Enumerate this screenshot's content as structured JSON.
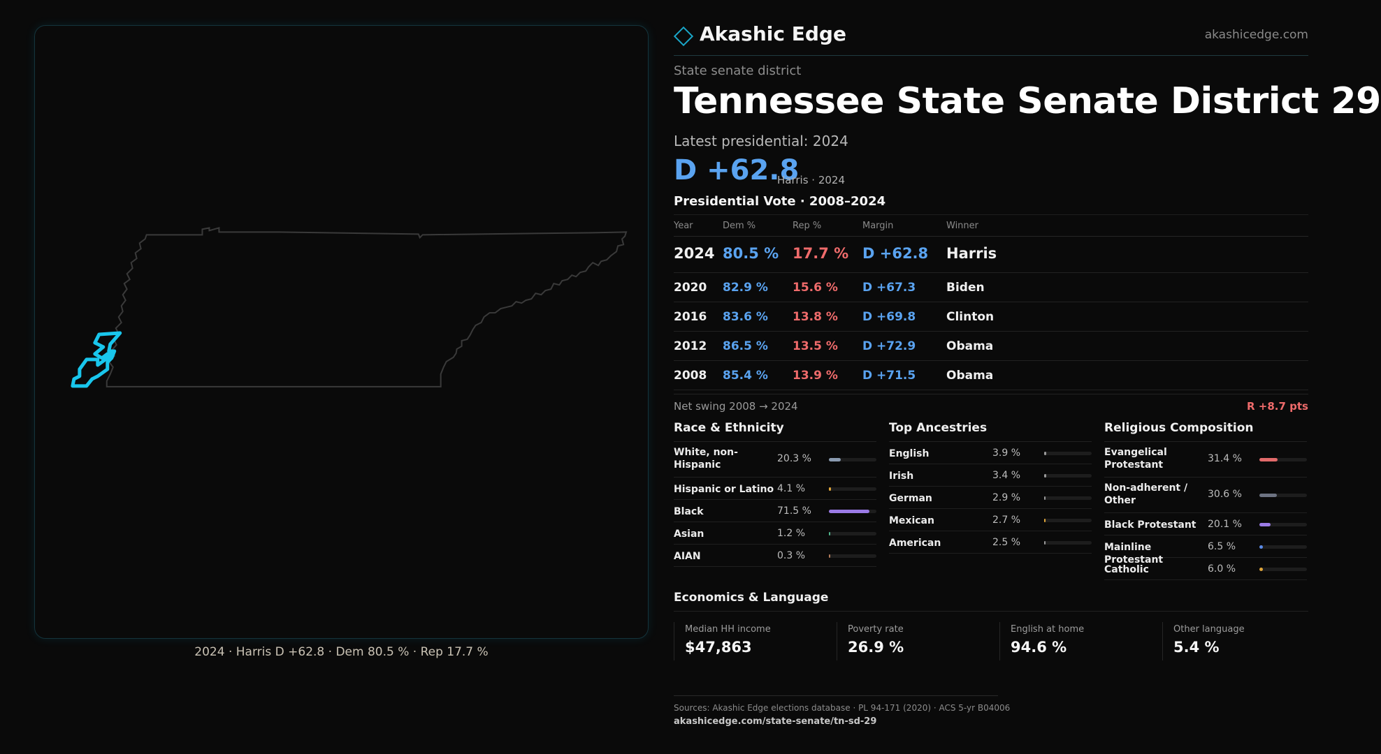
{
  "brand": {
    "name": "Akashic Edge",
    "url": "akashicedge.com"
  },
  "district": {
    "kicker": "State senate district",
    "title": "Tennessee  State Senate District 29",
    "latest_label": "Latest presidential: 2024",
    "margin": "D +62.8",
    "margin_sub": "Harris · 2024"
  },
  "map": {
    "caption": "2024 · Harris D +62.8 · Dem 80.5 % · Rep 17.7 %",
    "highlight_color": "#19c6ec"
  },
  "presidential": {
    "title": "Presidential Vote · 2008–2024",
    "headers": {
      "year": "Year",
      "dem": "Dem %",
      "rep": "Rep %",
      "margin": "Margin",
      "winner": "Winner"
    },
    "rows": [
      {
        "year": "2024",
        "dem": "80.5 %",
        "rep": "17.7 %",
        "margin": "D +62.8",
        "winner": "Harris"
      },
      {
        "year": "2020",
        "dem": "82.9 %",
        "rep": "15.6 %",
        "margin": "D +67.3",
        "winner": "Biden"
      },
      {
        "year": "2016",
        "dem": "83.6 %",
        "rep": "13.8 %",
        "margin": "D +69.8",
        "winner": "Clinton"
      },
      {
        "year": "2012",
        "dem": "86.5 %",
        "rep": "13.5 %",
        "margin": "D +72.9",
        "winner": "Obama"
      },
      {
        "year": "2008",
        "dem": "85.4 %",
        "rep": "13.9 %",
        "margin": "D +71.5",
        "winner": "Obama"
      }
    ],
    "swing_label": "Net swing 2008 → 2024",
    "swing_value": "R +8.7 pts"
  },
  "race": {
    "title": "Race & Ethnicity",
    "items": [
      {
        "label": "White, non-Hispanic",
        "pct": "20.3 %",
        "value": 20.3,
        "color": "#8a9bb0"
      },
      {
        "label": "Hispanic or Latino",
        "pct": "4.1 %",
        "value": 4.1,
        "color": "#e0a63a"
      },
      {
        "label": "Black",
        "pct": "71.5 %",
        "value": 71.5,
        "color": "#9b7be6"
      },
      {
        "label": "Asian",
        "pct": "1.2 %",
        "value": 1.2,
        "color": "#4fb38a"
      },
      {
        "label": "AIAN",
        "pct": "0.3 %",
        "value": 0.3,
        "color": "#b07a5a"
      }
    ]
  },
  "ancestry": {
    "title": "Top Ancestries",
    "items": [
      {
        "label": "English",
        "pct": "3.9 %",
        "value": 3.9,
        "color": "#9a9a9a"
      },
      {
        "label": "Irish",
        "pct": "3.4 %",
        "value": 3.4,
        "color": "#9a9a9a"
      },
      {
        "label": "German",
        "pct": "2.9 %",
        "value": 2.9,
        "color": "#9a9a9a"
      },
      {
        "label": "Mexican",
        "pct": "2.7 %",
        "value": 2.7,
        "color": "#e0a63a"
      },
      {
        "label": "American",
        "pct": "2.5 %",
        "value": 2.5,
        "color": "#9a9a9a"
      }
    ]
  },
  "religion": {
    "title": "Religious Composition",
    "items": [
      {
        "label": "Evangelical Protestant",
        "pct": "31.4 %",
        "value": 31.4,
        "color": "#e26a6a"
      },
      {
        "label": "Non-adherent / Other",
        "pct": "30.6 %",
        "value": 30.6,
        "color": "#6d7382"
      },
      {
        "label": "Black Protestant",
        "pct": "20.1 %",
        "value": 20.1,
        "color": "#9b7be6"
      },
      {
        "label": "Mainline Protestant",
        "pct": "6.5 %",
        "value": 6.5,
        "color": "#5a8ae6"
      },
      {
        "label": "Catholic",
        "pct": "6.0 %",
        "value": 6.0,
        "color": "#e0a63a"
      }
    ]
  },
  "economics": {
    "title": "Economics & Language",
    "cells": [
      {
        "label": "Median HH income",
        "value": "$47,863"
      },
      {
        "label": "Poverty rate",
        "value": "26.9 %"
      },
      {
        "label": "English at home",
        "value": "94.6 %"
      },
      {
        "label": "Other language",
        "value": "5.4 %"
      }
    ]
  },
  "sources": {
    "text": "Sources: Akashic Edge elections database · PL 94-171 (2020) · ACS 5-yr B04006",
    "url": "akashicedge.com/state-senate/tn-sd-29"
  }
}
